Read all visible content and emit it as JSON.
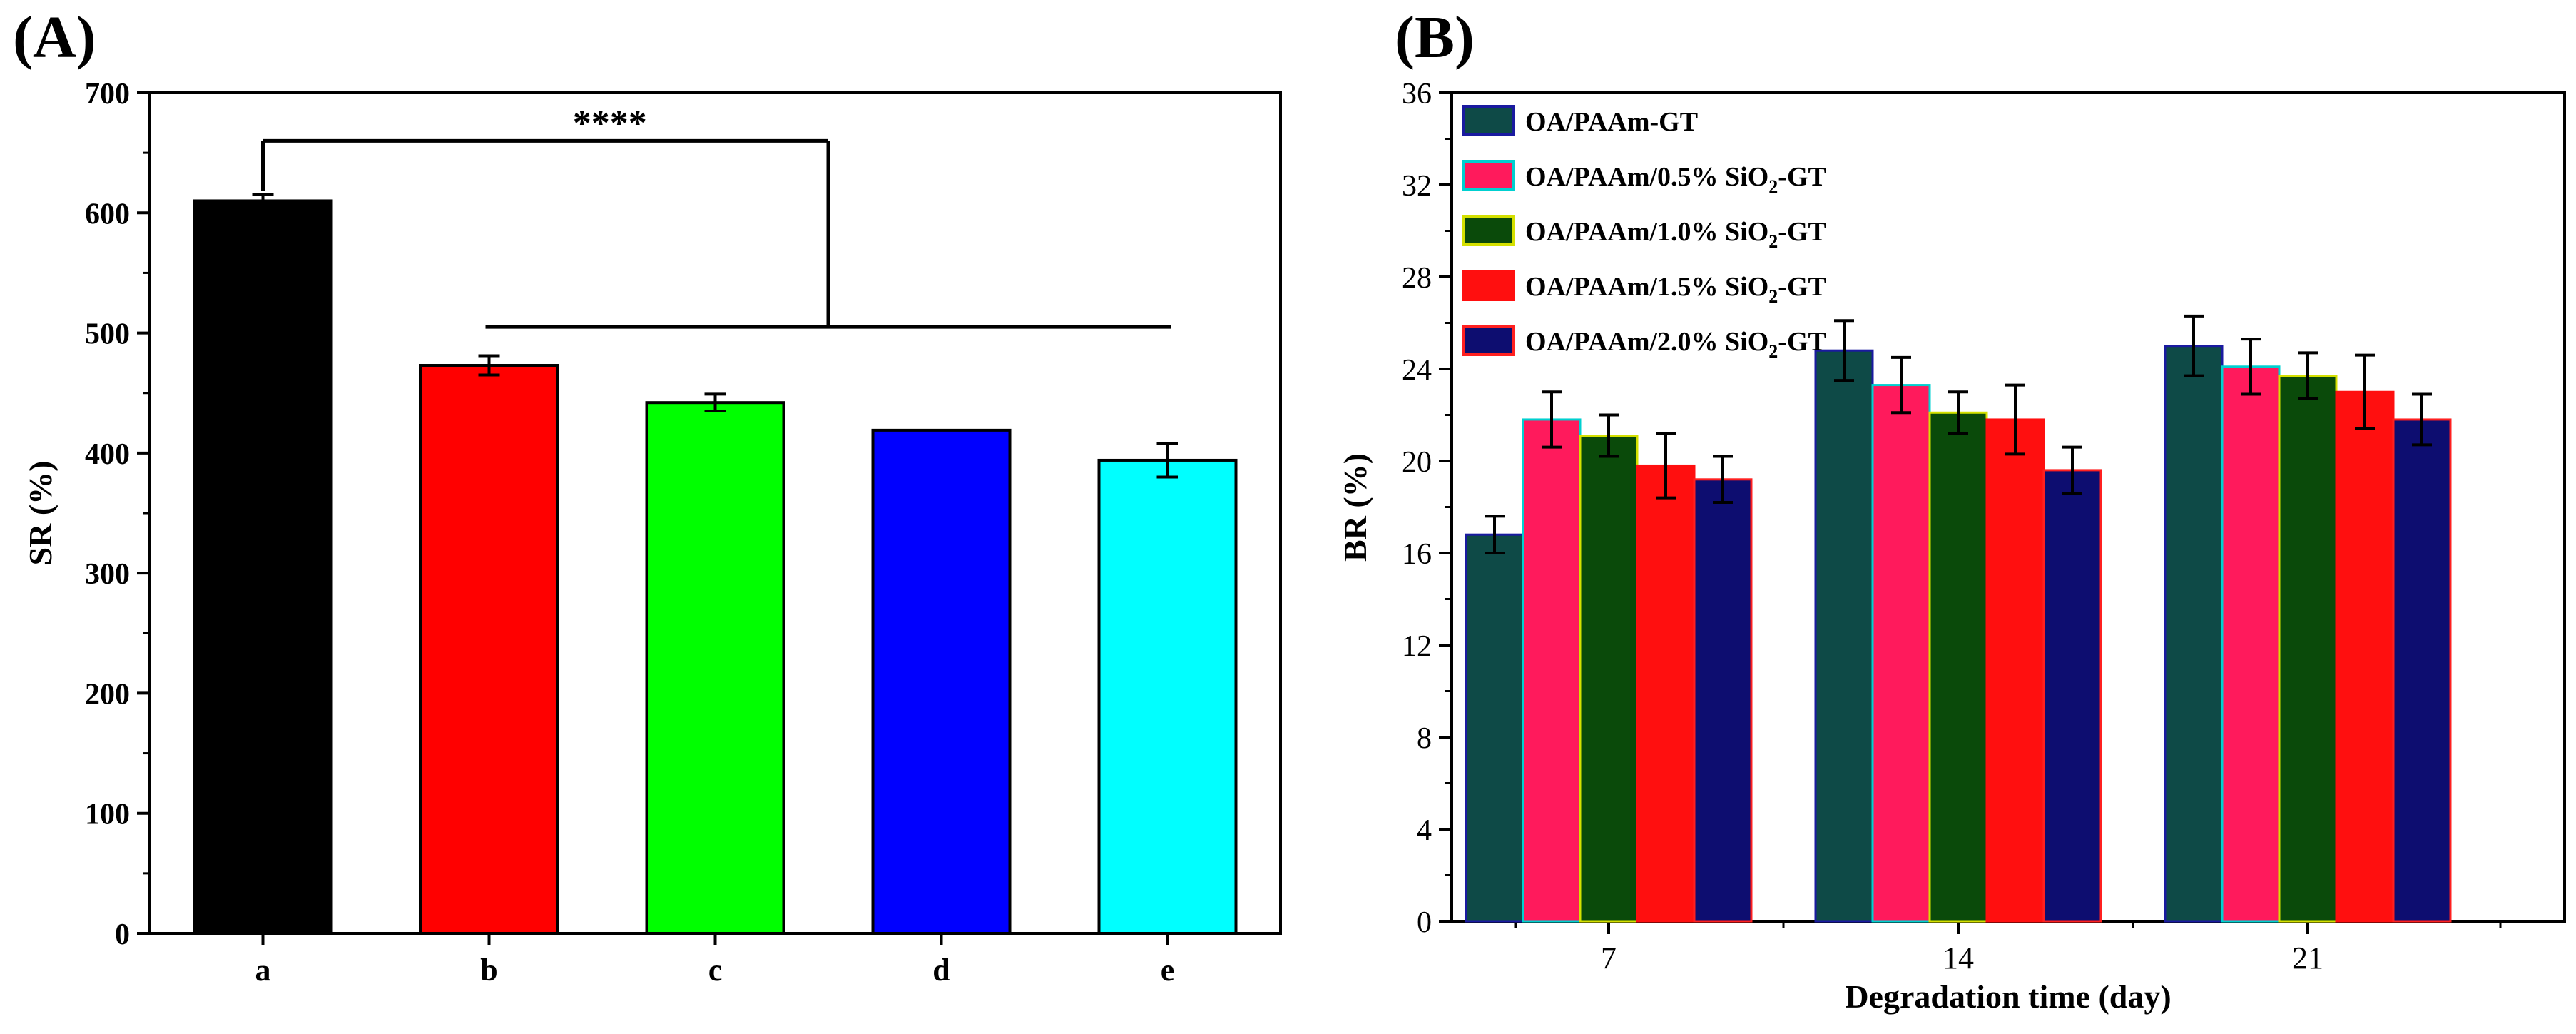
{
  "chart_data": [
    {
      "panel_label": "(A)",
      "type": "bar",
      "categories": [
        "a",
        "b",
        "c",
        "d",
        "e"
      ],
      "values": [
        610,
        473,
        442,
        419,
        394
      ],
      "errors": [
        5,
        8,
        7,
        0,
        14
      ],
      "colors": [
        "#000000",
        "#ff0000",
        "#00ff00",
        "#0000ff",
        "#00ffff"
      ],
      "xlabel": "",
      "ylabel": "SR (%)",
      "ylim": [
        0,
        700
      ],
      "yticks": [
        0,
        100,
        200,
        300,
        400,
        500,
        600,
        700
      ],
      "significance": {
        "label": "****",
        "from": "a",
        "to": [
          "b",
          "c",
          "d",
          "e"
        ]
      },
      "legend": "none",
      "grid": false
    },
    {
      "panel_label": "(B)",
      "type": "bar",
      "categories": [
        "7",
        "14",
        "21"
      ],
      "xlabel": "Degradation time (day)",
      "ylabel": "BR (%)",
      "ylim": [
        0,
        36
      ],
      "yticks": [
        0,
        4,
        8,
        12,
        16,
        20,
        24,
        28,
        32,
        36
      ],
      "legend": "top-left",
      "grid": false,
      "series": [
        {
          "name": "OA/PAAm-GT",
          "name_pre": "OA/PAAm-GT",
          "name_sub": "",
          "name_post": "",
          "values": [
            16.8,
            24.8,
            25.0
          ],
          "errors": [
            0.8,
            1.3,
            1.3
          ],
          "color": "#0e4a47",
          "edge": "#1a1aa0"
        },
        {
          "name": "OA/PAAm/0.5% SiO2-GT",
          "name_pre": "OA/PAAm/0.5% SiO",
          "name_sub": "2",
          "name_post": "-GT",
          "values": [
            21.8,
            23.3,
            24.1
          ],
          "errors": [
            1.2,
            1.2,
            1.2
          ],
          "color": "#ff1a5c",
          "edge": "#00d0d0"
        },
        {
          "name": "OA/PAAm/1.0% SiO2-GT",
          "name_pre": "OA/PAAm/1.0% SiO",
          "name_sub": "2",
          "name_post": "-GT",
          "values": [
            21.1,
            22.1,
            23.7
          ],
          "errors": [
            0.9,
            0.9,
            1.0
          ],
          "color": "#0a4a0a",
          "edge": "#d4e000"
        },
        {
          "name": "OA/PAAm/1.5% SiO2-GT",
          "name_pre": "OA/PAAm/1.5% SiO",
          "name_sub": "2",
          "name_post": "-GT",
          "values": [
            19.8,
            21.8,
            23.0
          ],
          "errors": [
            1.4,
            1.5,
            1.6
          ],
          "color": "#ff0f0f",
          "edge": "#ff0f0f"
        },
        {
          "name": "OA/PAAm/2.0% SiO2-GT",
          "name_pre": "OA/PAAm/2.0% SiO",
          "name_sub": "2",
          "name_post": "-GT",
          "values": [
            19.2,
            19.6,
            21.8
          ],
          "errors": [
            1.0,
            1.0,
            1.1
          ],
          "color": "#0d0d70",
          "edge": "#ff2020"
        }
      ]
    }
  ]
}
